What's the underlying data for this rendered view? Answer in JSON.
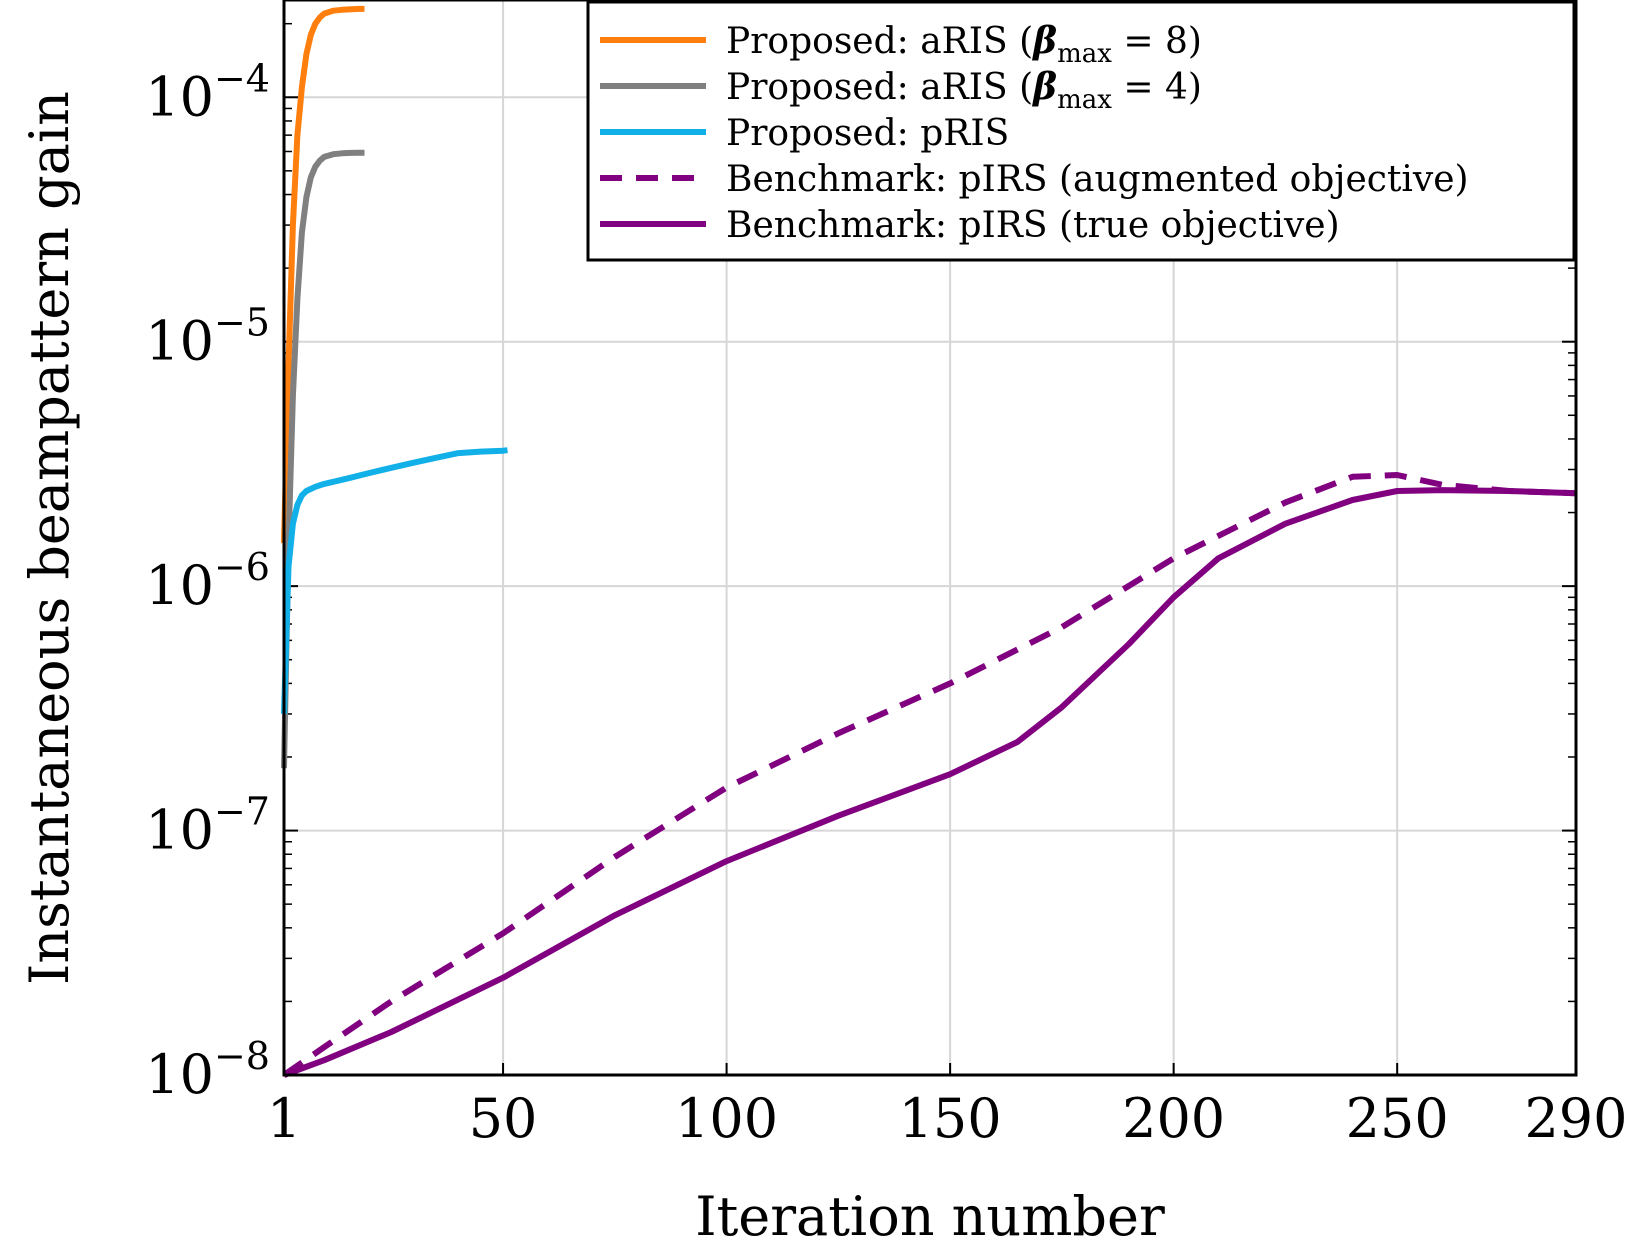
{
  "chart_data": {
    "type": "line",
    "xlabel": "Iteration number",
    "ylabel": "Instantaneous beampattern gain",
    "xscale": "linear",
    "yscale": "log",
    "xlim": [
      1,
      290
    ],
    "ylim": [
      1e-08,
      0.00025
    ],
    "grid": true,
    "legend_position": "top-right",
    "x_ticks": [
      {
        "value": 1,
        "label": "1"
      },
      {
        "value": 50,
        "label": "50"
      },
      {
        "value": 100,
        "label": "100"
      },
      {
        "value": 150,
        "label": "150"
      },
      {
        "value": 200,
        "label": "200"
      },
      {
        "value": 250,
        "label": "250"
      },
      {
        "value": 290,
        "label": "290"
      }
    ],
    "y_ticks": [
      {
        "value": 1e-08,
        "base": "10",
        "exp": "−8"
      },
      {
        "value": 1e-07,
        "base": "10",
        "exp": "−7"
      },
      {
        "value": 1e-06,
        "base": "10",
        "exp": "−6"
      },
      {
        "value": 1e-05,
        "base": "10",
        "exp": "−5"
      },
      {
        "value": 0.0001,
        "base": "10",
        "exp": "−4"
      }
    ],
    "series": [
      {
        "name": "Proposed: aRIS (β_max = 8)",
        "legend_prefix": "Proposed: aRIS (",
        "legend_beta": "β",
        "legend_sub": "max",
        "legend_suffix": " = 8)",
        "color": "#ff7f0e",
        "dash": "solid",
        "x": [
          1,
          2,
          3,
          4,
          5,
          6,
          7,
          8,
          9,
          10,
          12,
          14,
          16,
          18,
          19
        ],
        "y": [
          1.5e-06,
          8e-06,
          3e-05,
          7e-05,
          0.00011,
          0.00015,
          0.00018,
          0.0002,
          0.000212,
          0.00022,
          0.000226,
          0.000228,
          0.000229,
          0.00023,
          0.00023
        ]
      },
      {
        "name": "Proposed: aRIS (β_max = 4)",
        "legend_prefix": "Proposed: aRIS (",
        "legend_beta": "β",
        "legend_sub": "max",
        "legend_suffix": " = 4)",
        "color": "#808080",
        "dash": "solid",
        "x": [
          1,
          2,
          3,
          4,
          5,
          6,
          7,
          8,
          9,
          10,
          12,
          14,
          16,
          18,
          19
        ],
        "y": [
          1.8e-07,
          1.5e-06,
          6e-06,
          1.5e-05,
          2.8e-05,
          3.9e-05,
          4.7e-05,
          5.2e-05,
          5.5e-05,
          5.7e-05,
          5.85e-05,
          5.9e-05,
          5.92e-05,
          5.93e-05,
          5.93e-05
        ]
      },
      {
        "name": "Proposed: pRIS",
        "legend_prefix": "Proposed: pRIS",
        "color": "#12b0e8",
        "dash": "solid",
        "x": [
          1,
          2,
          3,
          4,
          5,
          6,
          8,
          10,
          15,
          20,
          25,
          30,
          35,
          40,
          45,
          50,
          51
        ],
        "y": [
          3e-07,
          1.2e-06,
          1.8e-06,
          2.15e-06,
          2.35e-06,
          2.45e-06,
          2.55e-06,
          2.62e-06,
          2.75e-06,
          2.9e-06,
          3.05e-06,
          3.2e-06,
          3.35e-06,
          3.5e-06,
          3.55e-06,
          3.58e-06,
          3.6e-06
        ]
      },
      {
        "name": "Benchmark: pIRS (augmented objective)",
        "legend_prefix": "Benchmark: pIRS (augmented objective)",
        "color": "#800080",
        "dash": "dashed",
        "x": [
          1,
          10,
          25,
          50,
          75,
          100,
          125,
          150,
          175,
          200,
          225,
          240,
          250,
          260,
          275,
          290
        ],
        "y": [
          1e-08,
          1.3e-08,
          2e-08,
          3.8e-08,
          7.8e-08,
          1.5e-07,
          2.5e-07,
          4e-07,
          6.8e-07,
          1.3e-06,
          2.2e-06,
          2.8e-06,
          2.85e-06,
          2.6e-06,
          2.45e-06,
          2.4e-06
        ]
      },
      {
        "name": "Benchmark: pIRS (true objective)",
        "legend_prefix": "Benchmark: pIRS (true objective)",
        "color": "#800080",
        "dash": "solid",
        "x": [
          1,
          10,
          25,
          50,
          75,
          100,
          125,
          150,
          165,
          175,
          190,
          200,
          210,
          225,
          240,
          250,
          260,
          275,
          290
        ],
        "y": [
          1e-08,
          1.15e-08,
          1.5e-08,
          2.5e-08,
          4.5e-08,
          7.5e-08,
          1.15e-07,
          1.7e-07,
          2.3e-07,
          3.2e-07,
          5.8e-07,
          9e-07,
          1.3e-06,
          1.8e-06,
          2.25e-06,
          2.45e-06,
          2.47e-06,
          2.45e-06,
          2.4e-06
        ]
      }
    ]
  }
}
